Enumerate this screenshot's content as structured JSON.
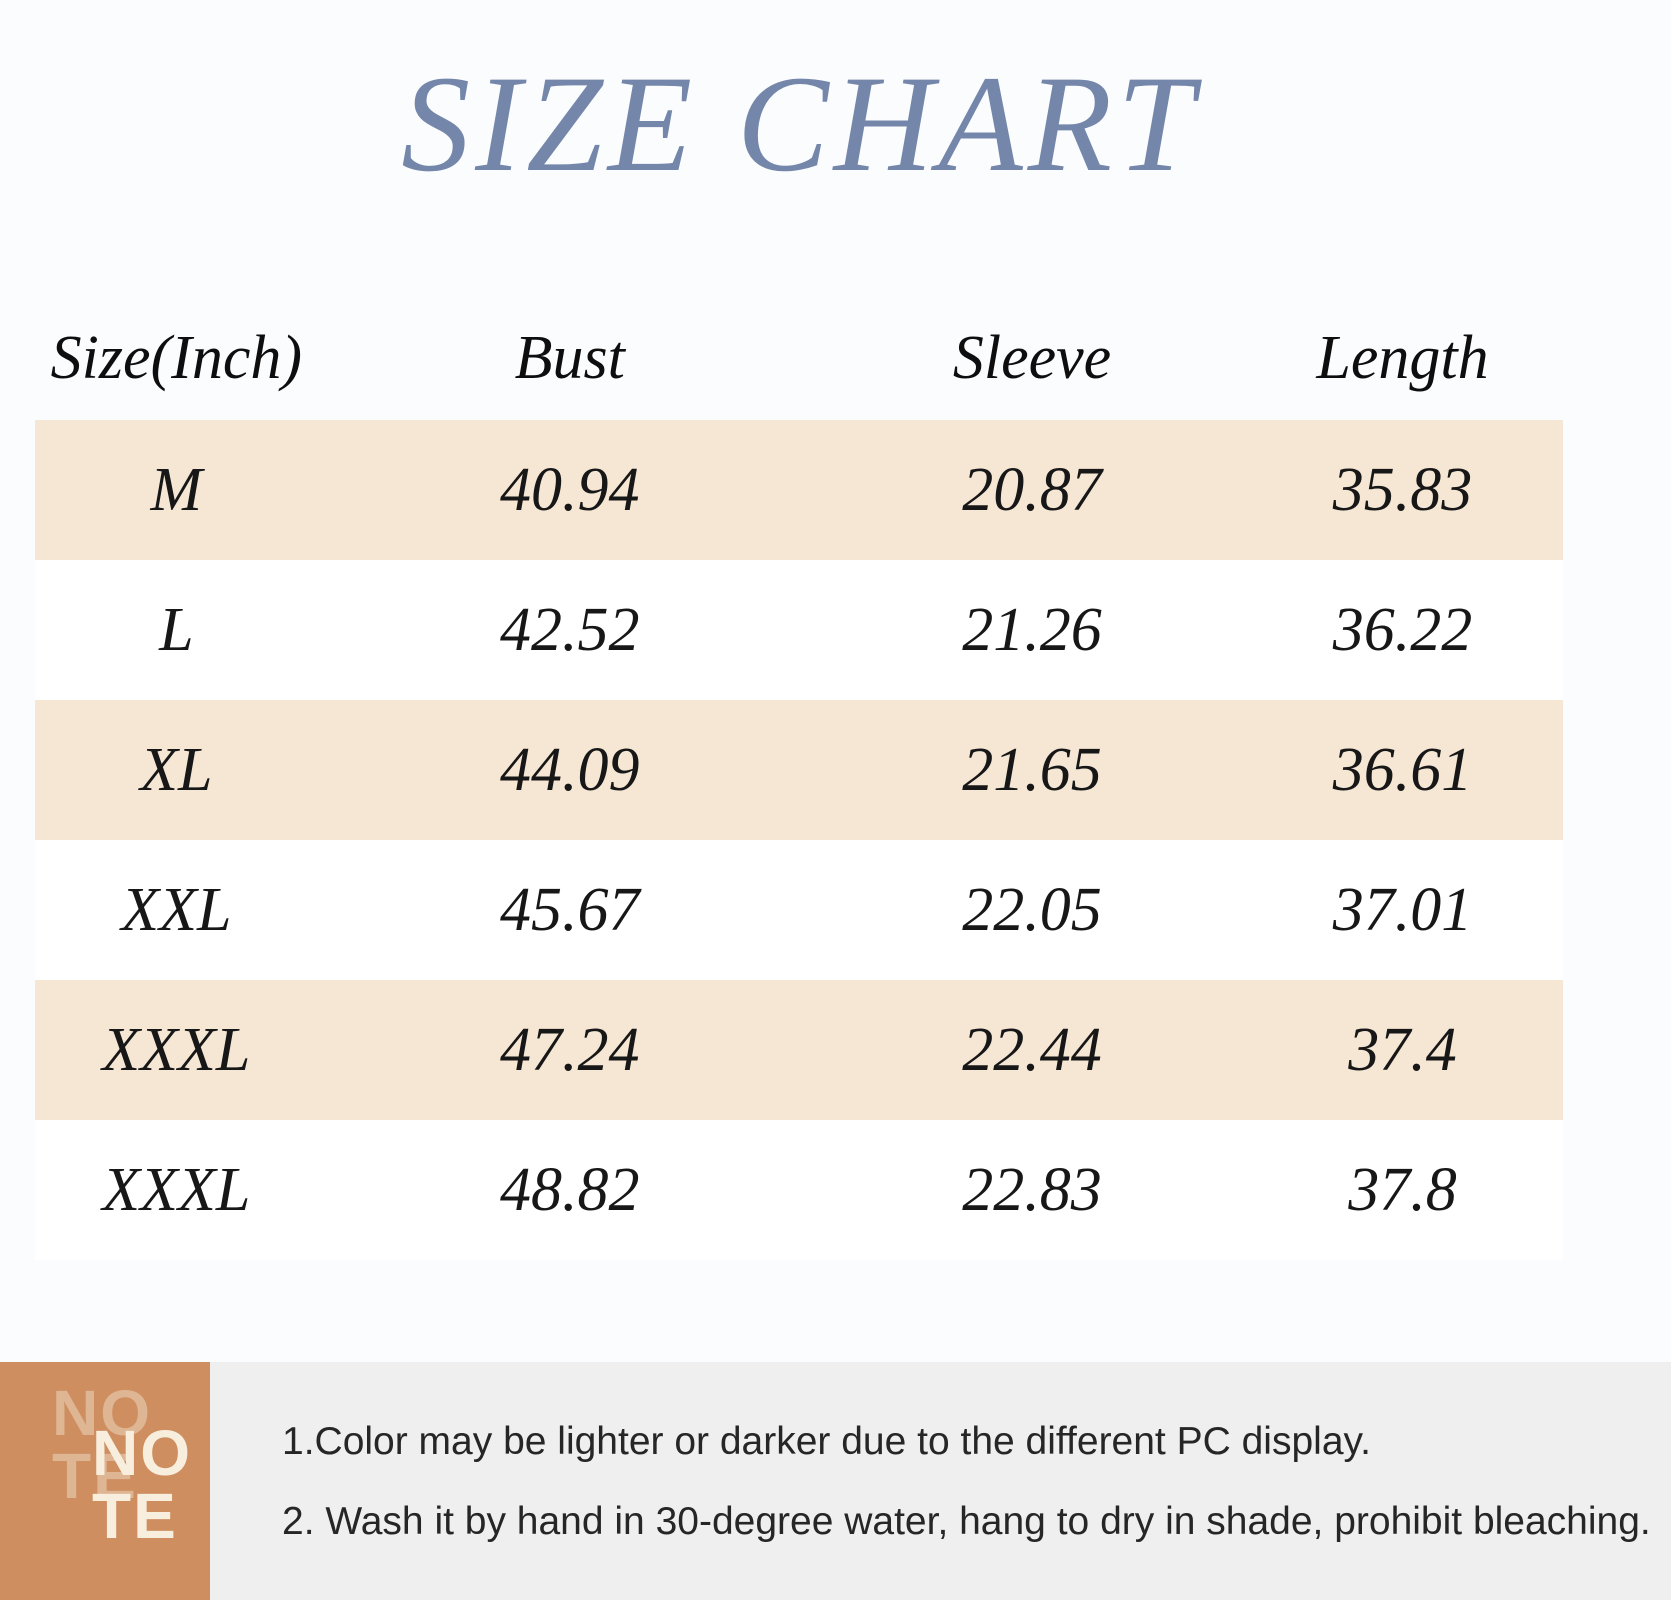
{
  "title": "SIZE CHART",
  "colors": {
    "title_text": "#7487ab",
    "row_shade": "#f6e7d5",
    "note_badge_bg": "#ce8e60",
    "note_badge_text": "#f8eedd",
    "note_panel_bg": "#efefef",
    "table_text": "#171717"
  },
  "chart_data": {
    "type": "table",
    "title": "SIZE CHART",
    "columns": [
      "Size(Inch)",
      "Bust",
      "Sleeve",
      "Length"
    ],
    "rows": [
      [
        "M",
        "40.94",
        "20.87",
        "35.83"
      ],
      [
        "L",
        "42.52",
        "21.26",
        "36.22"
      ],
      [
        "XL",
        "44.09",
        "21.65",
        "36.61"
      ],
      [
        "XXL",
        "45.67",
        "22.05",
        "37.01"
      ],
      [
        "XXXL",
        "47.24",
        "22.44",
        "37.4"
      ],
      [
        "XXXL",
        "48.82",
        "22.83",
        "37.8"
      ]
    ]
  },
  "note": {
    "badge": "NO\nTE",
    "items": [
      "1.Color may be lighter or darker due to the different PC display.",
      "2. Wash it by hand in 30-degree water, hang to dry in shade, prohibit bleaching."
    ]
  }
}
